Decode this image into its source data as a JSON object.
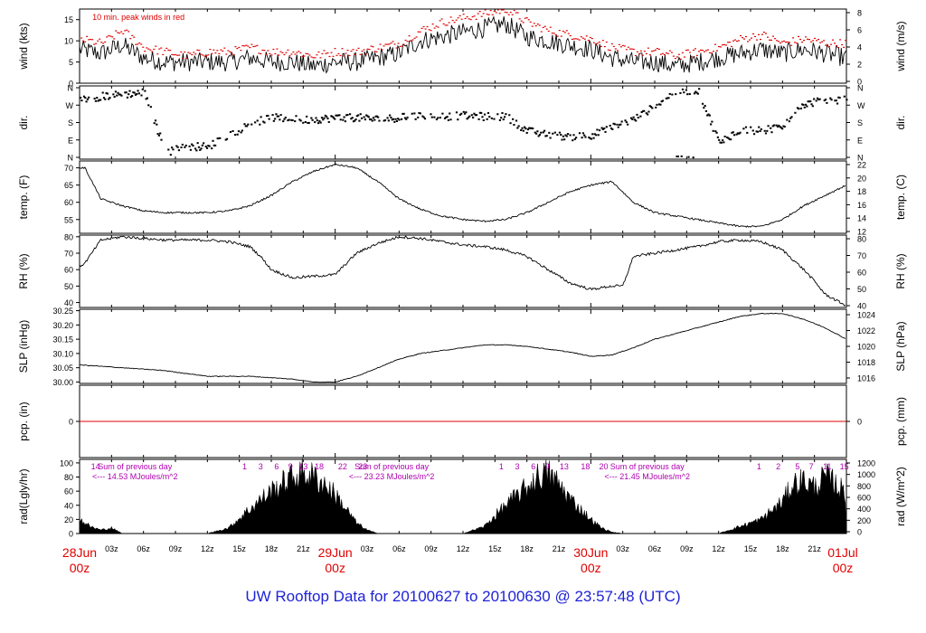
{
  "footer_title": "UW Rooftop Data for 20100627  to  20100630 @ 23:57:48  (UTC)",
  "colors": {
    "data": "#000000",
    "peak": "#e00000",
    "sun": "#b000b0",
    "day": "#e00000",
    "footer": "#1f23d6"
  },
  "x_axis": {
    "hour_ticks": [
      "03z",
      "06z",
      "09z",
      "12z",
      "15z",
      "18z",
      "21z"
    ],
    "day_labels": [
      {
        "date": "28Jun",
        "hour": "00z"
      },
      {
        "date": "29Jun",
        "hour": "00z"
      },
      {
        "date": "30Jun",
        "hour": "00z"
      },
      {
        "date": "01Jul",
        "hour": "00z"
      }
    ]
  },
  "chart_data": [
    {
      "type": "line",
      "ylabel_left": "wind (kts)",
      "ylabel_right": "wind (m/s)",
      "annotation": "10 min. peak winds in red",
      "ylim": [
        0,
        17.5
      ],
      "ticks_left": [
        0,
        5,
        10,
        15
      ],
      "ticks_right": [
        0,
        2,
        4,
        6,
        8
      ],
      "x": [
        0,
        2,
        4,
        6,
        8,
        10,
        12,
        14,
        16,
        18,
        20,
        22,
        24,
        26,
        28,
        30,
        32,
        34,
        36,
        38,
        40,
        42,
        44,
        46,
        48,
        50,
        52,
        54,
        56,
        58,
        60,
        62,
        64,
        66,
        68,
        70,
        72
      ],
      "series": [
        {
          "values": [
            8,
            7,
            9,
            6,
            5,
            5,
            5,
            5,
            6,
            5,
            5,
            4,
            5,
            5,
            6,
            7,
            10,
            11,
            12,
            13,
            14,
            11,
            10,
            9,
            8,
            6,
            5,
            5,
            4,
            5,
            6,
            7,
            8,
            7,
            8,
            7,
            6
          ]
        },
        {
          "values": [
            10,
            9,
            12,
            8,
            7,
            6,
            7,
            7,
            8,
            7,
            7,
            6,
            7,
            7,
            8,
            9,
            12,
            14,
            15,
            16,
            17,
            14,
            12,
            11,
            10,
            8,
            7,
            7,
            6,
            7,
            8,
            10,
            11,
            9,
            10,
            9,
            9
          ]
        }
      ]
    },
    {
      "type": "scatter",
      "ylabel_left": "dir.",
      "ylabel_right": "dir.",
      "ticks_left": [
        "N",
        "E",
        "S",
        "W",
        "N"
      ],
      "ticks_right": [
        "N",
        "E",
        "S",
        "W",
        "N"
      ],
      "x": [
        0,
        2,
        4,
        6,
        8,
        10,
        12,
        14,
        16,
        18,
        20,
        22,
        24,
        26,
        28,
        30,
        32,
        34,
        36,
        38,
        40,
        42,
        44,
        46,
        48,
        50,
        52,
        54,
        56,
        58,
        60,
        62,
        64,
        66,
        68,
        70,
        72
      ],
      "values": [
        300,
        320,
        330,
        340,
        30,
        60,
        60,
        120,
        180,
        210,
        200,
        200,
        210,
        210,
        200,
        210,
        220,
        215,
        220,
        215,
        215,
        140,
        120,
        110,
        120,
        160,
        200,
        270,
        350,
        350,
        80,
        150,
        140,
        170,
        280,
        300,
        300
      ]
    },
    {
      "type": "line",
      "ylabel_left": "temp. (F)",
      "ylabel_right": "temp. (C)",
      "ylim": [
        51,
        72
      ],
      "ticks_left": [
        55,
        60,
        65,
        70
      ],
      "ticks_right": [
        12,
        14,
        16,
        18,
        20,
        22
      ],
      "x": [
        0,
        0.5,
        2,
        4,
        6,
        8,
        10,
        12,
        14,
        16,
        18,
        20,
        22,
        24,
        26,
        28,
        30,
        32,
        34,
        36,
        38,
        40,
        42,
        44,
        46,
        48,
        50,
        52,
        54,
        56,
        58,
        60,
        62,
        64,
        66,
        68,
        70,
        72
      ],
      "values": [
        70,
        70,
        61,
        59,
        57.5,
        57,
        57,
        57,
        57.5,
        59,
        62,
        66,
        69,
        71,
        70,
        66,
        61,
        58,
        56,
        55,
        54.5,
        55,
        57,
        60,
        63,
        65,
        66,
        60,
        57,
        56,
        55,
        54,
        53,
        53,
        55,
        59,
        62,
        65
      ]
    },
    {
      "type": "line",
      "ylabel_left": "RH (%)",
      "ylabel_right": "RH (%)",
      "ylim": [
        37,
        81
      ],
      "ticks_left": [
        40,
        50,
        60,
        70,
        80
      ],
      "ticks_right": [
        40,
        50,
        60,
        70,
        80
      ],
      "x": [
        0,
        0.5,
        2,
        4,
        6,
        8,
        10,
        12,
        14,
        16,
        17,
        18,
        20,
        22,
        24,
        26,
        28,
        30,
        32,
        34,
        36,
        38,
        40,
        42,
        44,
        46,
        48,
        50,
        51,
        52,
        54,
        56,
        58,
        60,
        62,
        64,
        66,
        68,
        69,
        70,
        72
      ],
      "values": [
        62,
        64,
        78,
        80,
        79,
        78,
        78,
        78,
        77,
        74,
        68,
        60,
        55,
        56,
        57,
        70,
        76,
        80,
        79,
        77,
        75,
        74,
        72,
        68,
        60,
        52,
        48,
        50,
        50,
        68,
        70,
        72,
        74,
        77,
        78,
        77,
        72,
        60,
        53,
        45,
        38
      ]
    },
    {
      "type": "line",
      "ylabel_left": "SLP (inHg)",
      "ylabel_right": "SLP (hPa)",
      "ylim": [
        29.995,
        30.255
      ],
      "ticks_left": [
        30.0,
        30.05,
        30.1,
        30.15,
        30.2,
        30.25
      ],
      "ticks_right": [
        1016,
        1018,
        1020,
        1022,
        1024
      ],
      "x": [
        0,
        2,
        4,
        6,
        8,
        10,
        12,
        14,
        16,
        18,
        20,
        22,
        24,
        26,
        28,
        30,
        32,
        34,
        36,
        38,
        40,
        42,
        44,
        46,
        48,
        50,
        52,
        54,
        56,
        58,
        60,
        62,
        64,
        66,
        68,
        70,
        72
      ],
      "values": [
        30.06,
        30.055,
        30.05,
        30.045,
        30.04,
        30.03,
        30.02,
        30.02,
        30.02,
        30.015,
        30.01,
        30.0,
        30.0,
        30.02,
        30.05,
        30.08,
        30.1,
        30.11,
        30.12,
        30.13,
        30.13,
        30.125,
        30.115,
        30.105,
        30.09,
        30.095,
        30.12,
        30.15,
        30.17,
        30.19,
        30.21,
        30.23,
        30.24,
        30.24,
        30.22,
        30.19,
        30.15
      ]
    },
    {
      "type": "line",
      "ylabel_left": "pcp. (in)",
      "ylabel_right": "pcp. (mm)",
      "ylim": [
        -1,
        1
      ],
      "ticks_left": [
        0
      ],
      "ticks_right": [
        0
      ],
      "x": [
        0,
        72
      ],
      "values": [
        0,
        0
      ]
    },
    {
      "type": "area",
      "ylabel_left": "rad(Lgly/hr)",
      "ylabel_right": "rad (W/m^2)",
      "ylim": [
        0,
        105
      ],
      "ticks_left": [
        0,
        20,
        40,
        60,
        80,
        100
      ],
      "ticks_right": [
        0,
        200,
        400,
        600,
        800,
        1000,
        1200
      ],
      "x": [
        0,
        1,
        2,
        3,
        4,
        12,
        14,
        16,
        18,
        20,
        21,
        22,
        23,
        24,
        25,
        26,
        27,
        28,
        36,
        38,
        40,
        42,
        43,
        44,
        45,
        46,
        47,
        48,
        49,
        50,
        51,
        52,
        60,
        62,
        64,
        66,
        67,
        68,
        69,
        70,
        71,
        72
      ],
      "values": [
        20,
        10,
        5,
        8,
        0,
        0,
        8,
        35,
        60,
        80,
        85,
        80,
        70,
        55,
        35,
        15,
        5,
        0,
        0,
        10,
        40,
        65,
        80,
        85,
        70,
        50,
        35,
        20,
        8,
        2,
        0,
        0,
        0,
        10,
        20,
        45,
        70,
        75,
        65,
        80,
        70,
        55
      ],
      "hour_labels": [
        {
          "x": 1.5,
          "label": "14"
        },
        {
          "x": 15.5,
          "label": "1"
        },
        {
          "x": 17,
          "label": "3"
        },
        {
          "x": 18.5,
          "label": "6"
        },
        {
          "x": 19.8,
          "label": "9"
        },
        {
          "x": 21,
          "label": "13"
        },
        {
          "x": 22.5,
          "label": "18"
        },
        {
          "x": 24.7,
          "label": "22"
        },
        {
          "x": 26.6,
          "label": "23"
        },
        {
          "x": 39.6,
          "label": "1"
        },
        {
          "x": 41.1,
          "label": "3"
        },
        {
          "x": 42.6,
          "label": "6"
        },
        {
          "x": 43.9,
          "label": "9"
        },
        {
          "x": 45.5,
          "label": "13"
        },
        {
          "x": 47.5,
          "label": "18"
        },
        {
          "x": 49.2,
          "label": "20"
        },
        {
          "x": 63.8,
          "label": "1"
        },
        {
          "x": 65.6,
          "label": "2"
        },
        {
          "x": 67.4,
          "label": "5"
        },
        {
          "x": 68.7,
          "label": "7"
        },
        {
          "x": 70.2,
          "label": "11"
        },
        {
          "x": 71.8,
          "label": "15"
        }
      ],
      "sums": [
        {
          "x": 5.2,
          "line1": "Sum of previous day",
          "line2": "<--- 14.53 MJoules/m^2"
        },
        {
          "x": 29.3,
          "line1": "Sum of previous day",
          "line2": "<--- 23.23 MJoules/m^2"
        },
        {
          "x": 53.3,
          "line1": "Sum of previous day",
          "line2": "<--- 21.45 MJoules/m^2"
        }
      ]
    }
  ]
}
